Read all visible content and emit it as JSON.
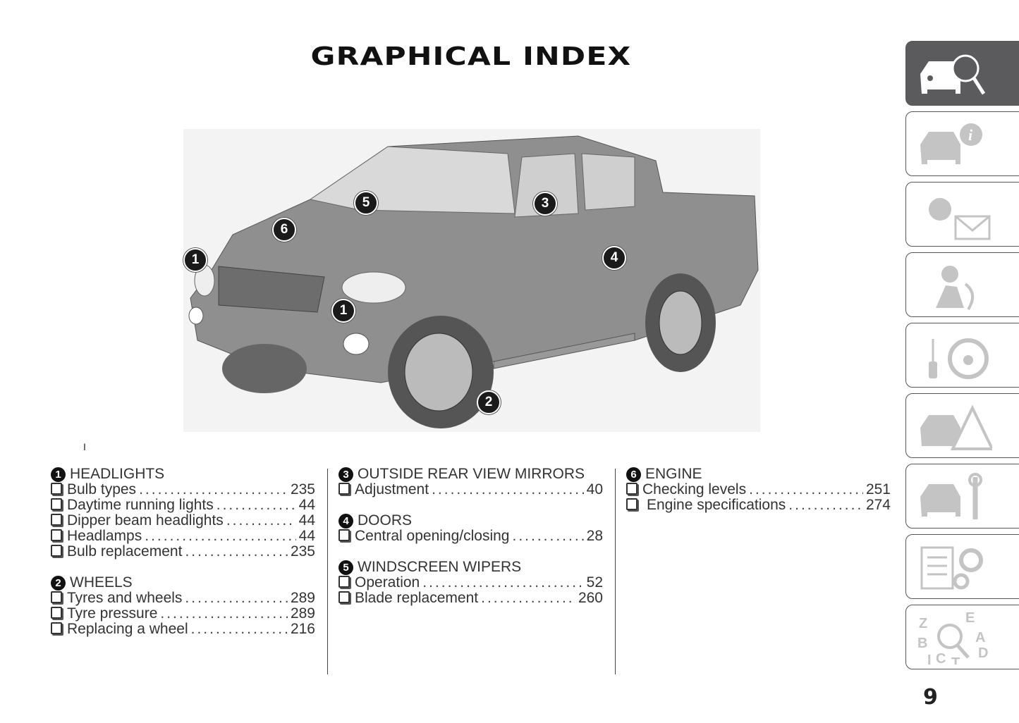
{
  "title": "GRAPHICAL INDEX",
  "figure": {
    "markers": [
      "1",
      "1",
      "2",
      "3",
      "4",
      "5",
      "6"
    ]
  },
  "tick_mark": "I",
  "sections": [
    {
      "num": "1",
      "title": "HEADLIGHTS",
      "items": [
        {
          "label": "Bulb types",
          "page": "235"
        },
        {
          "label": "Daytime running lights",
          "page": "44"
        },
        {
          "label": "Dipper beam headlights",
          "page": "44"
        },
        {
          "label": "Headlamps",
          "page": "44"
        },
        {
          "label": "Bulb replacement",
          "page": "235"
        }
      ]
    },
    {
      "num": "2",
      "title": "WHEELS",
      "items": [
        {
          "label": "Tyres and wheels",
          "page": "289"
        },
        {
          "label": "Tyre pressure",
          "page": "289"
        },
        {
          "label": "Replacing a wheel",
          "page": "216"
        }
      ]
    },
    {
      "num": "3",
      "title": "OUTSIDE REAR VIEW MIRRORS",
      "items": [
        {
          "label": "Adjustment",
          "page": "40"
        }
      ]
    },
    {
      "num": "4",
      "title": "DOORS",
      "items": [
        {
          "label": "Central opening/closing",
          "page": "28"
        }
      ]
    },
    {
      "num": "5",
      "title": "WINDSCREEN WIPERS",
      "items": [
        {
          "label": "Operation",
          "page": "52"
        },
        {
          "label": "Blade replacement",
          "page": "260"
        }
      ]
    },
    {
      "num": "6",
      "title": "ENGINE",
      "items": [
        {
          "label": "Checking levels",
          "page": "251"
        },
        {
          "label": "Engine specifications",
          "page": "274"
        }
      ]
    }
  ],
  "side_tabs": [
    {
      "icon": "car-magnifier-icon",
      "active": true
    },
    {
      "icon": "car-info-icon",
      "active": false
    },
    {
      "icon": "warning-light-envelope-icon",
      "active": false
    },
    {
      "icon": "airbag-passenger-icon",
      "active": false
    },
    {
      "icon": "key-steering-wheel-icon",
      "active": false
    },
    {
      "icon": "car-warning-triangle-icon",
      "active": false
    },
    {
      "icon": "car-wrench-icon",
      "active": false
    },
    {
      "icon": "document-gears-icon",
      "active": false
    },
    {
      "icon": "alphabet-index-icon",
      "active": false
    }
  ],
  "colors": {
    "active_tab": "#5b5b5d",
    "icon_inactive": "#c4c4c4"
  },
  "page_number": "9"
}
